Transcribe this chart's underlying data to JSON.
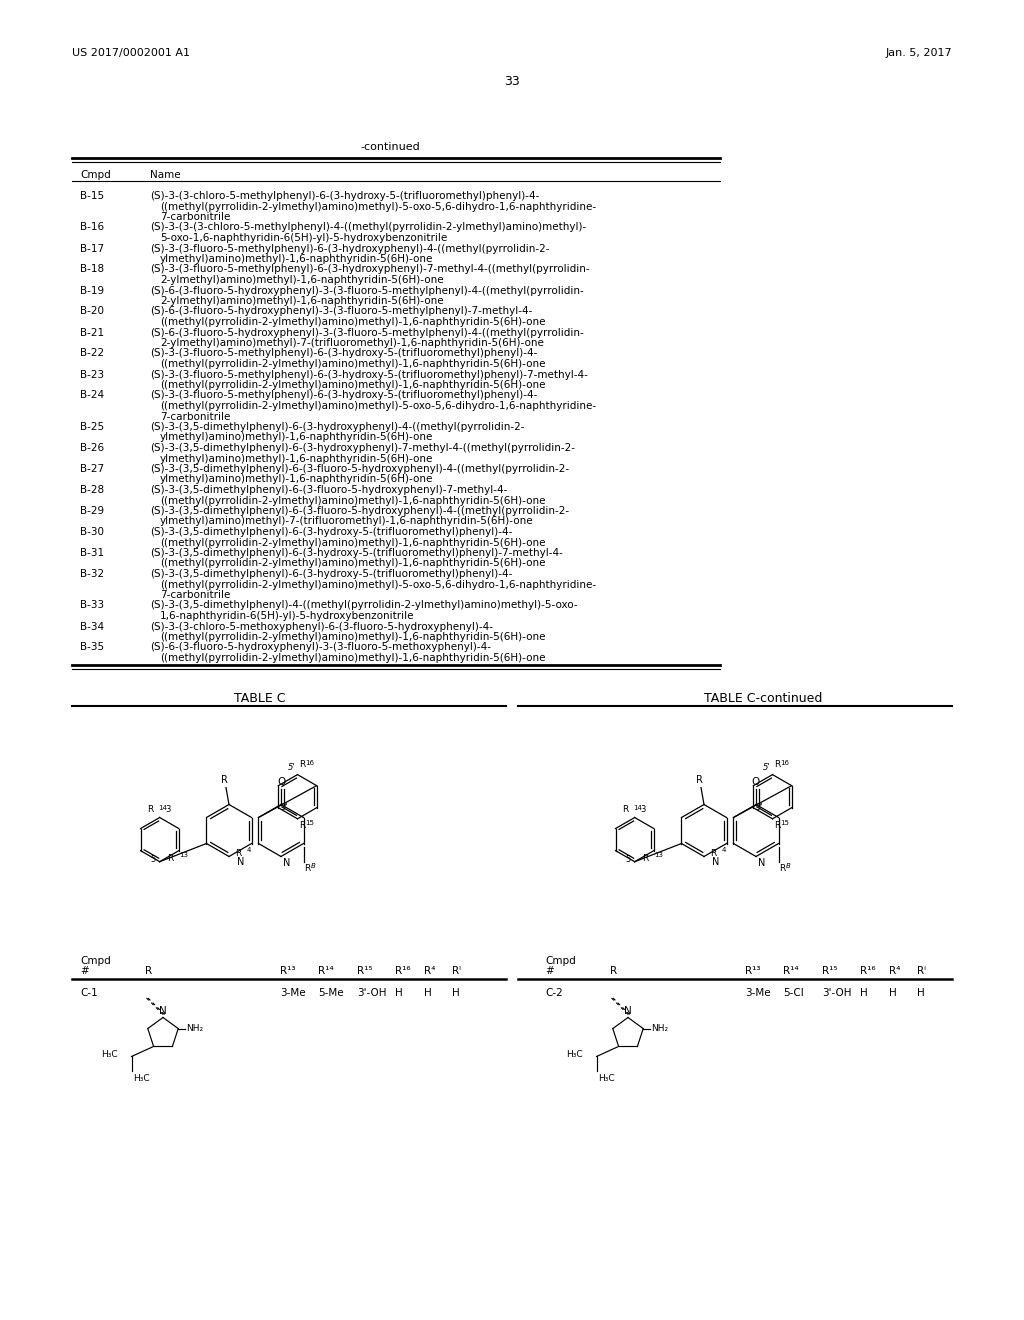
{
  "header_left": "US 2017/0002001 A1",
  "header_right": "Jan. 5, 2017",
  "page_number": "33",
  "continued_label": "-continued",
  "compounds": [
    [
      "B-15",
      "(S)-3-(3-chloro-5-methylphenyl)-6-(3-hydroxy-5-(trifluoromethyl)phenyl)-4-",
      "((methyl(pyrrolidin-2-ylmethyl)amino)methyl)-5-oxo-5,6-dihydro-1,6-naphthyridine-",
      "7-carbonitrile"
    ],
    [
      "B-16",
      "(S)-3-(3-(3-chloro-5-methylphenyl)-4-((methyl(pyrrolidin-2-ylmethyl)amino)methyl)-",
      "5-oxo-1,6-naphthyridin-6(5H)-yl)-5-hydroxybenzonitrile",
      ""
    ],
    [
      "B-17",
      "(S)-3-(3-fluoro-5-methylphenyl)-6-(3-hydroxyphenyl)-4-((methyl(pyrrolidin-2-",
      "ylmethyl)amino)methyl)-1,6-naphthyridin-5(6H)-one",
      ""
    ],
    [
      "B-18",
      "(S)-3-(3-fluoro-5-methylphenyl)-6-(3-hydroxyphenyl)-7-methyl-4-((methyl(pyrrolidin-",
      "2-ylmethyl)amino)methyl)-1,6-naphthyridin-5(6H)-one",
      ""
    ],
    [
      "B-19",
      "(S)-6-(3-fluoro-5-hydroxyphenyl)-3-(3-fluoro-5-methylphenyl)-4-((methyl(pyrrolidin-",
      "2-ylmethyl)amino)methyl)-1,6-naphthyridin-5(6H)-one",
      ""
    ],
    [
      "B-20",
      "(S)-6-(3-fluoro-5-hydroxyphenyl)-3-(3-fluoro-5-methylphenyl)-7-methyl-4-",
      "((methyl(pyrrolidin-2-ylmethyl)amino)methyl)-1,6-naphthyridin-5(6H)-one",
      ""
    ],
    [
      "B-21",
      "(S)-6-(3-fluoro-5-hydroxyphenyl)-3-(3-fluoro-5-methylphenyl)-4-((methyl(pyrrolidin-",
      "2-ylmethyl)amino)methyl)-7-(trifluoromethyl)-1,6-naphthyridin-5(6H)-one",
      ""
    ],
    [
      "B-22",
      "(S)-3-(3-fluoro-5-methylphenyl)-6-(3-hydroxy-5-(trifluoromethyl)phenyl)-4-",
      "((methyl(pyrrolidin-2-ylmethyl)amino)methyl)-1,6-naphthyridin-5(6H)-one",
      ""
    ],
    [
      "B-23",
      "(S)-3-(3-fluoro-5-methylphenyl)-6-(3-hydroxy-5-(trifluoromethyl)phenyl)-7-methyl-4-",
      "((methyl(pyrrolidin-2-ylmethyl)amino)methyl)-1,6-naphthyridin-5(6H)-one",
      ""
    ],
    [
      "B-24",
      "(S)-3-(3-fluoro-5-methylphenyl)-6-(3-hydroxy-5-(trifluoromethyl)phenyl)-4-",
      "((methyl(pyrrolidin-2-ylmethyl)amino)methyl)-5-oxo-5,6-dihydro-1,6-naphthyridine-",
      "7-carbonitrile"
    ],
    [
      "B-25",
      "(S)-3-(3,5-dimethylphenyl)-6-(3-hydroxyphenyl)-4-((methyl(pyrrolidin-2-",
      "ylmethyl)amino)methyl)-1,6-naphthyridin-5(6H)-one",
      ""
    ],
    [
      "B-26",
      "(S)-3-(3,5-dimethylphenyl)-6-(3-hydroxyphenyl)-7-methyl-4-((methyl(pyrrolidin-2-",
      "ylmethyl)amino)methyl)-1,6-naphthyridin-5(6H)-one",
      ""
    ],
    [
      "B-27",
      "(S)-3-(3,5-dimethylphenyl)-6-(3-fluoro-5-hydroxyphenyl)-4-((methyl(pyrrolidin-2-",
      "ylmethyl)amino)methyl)-1,6-naphthyridin-5(6H)-one",
      ""
    ],
    [
      "B-28",
      "(S)-3-(3,5-dimethylphenyl)-6-(3-fluoro-5-hydroxyphenyl)-7-methyl-4-",
      "((methyl(pyrrolidin-2-ylmethyl)amino)methyl)-1,6-naphthyridin-5(6H)-one",
      ""
    ],
    [
      "B-29",
      "(S)-3-(3,5-dimethylphenyl)-6-(3-fluoro-5-hydroxyphenyl)-4-((methyl(pyrrolidin-2-",
      "ylmethyl)amino)methyl)-7-(trifluoromethyl)-1,6-naphthyridin-5(6H)-one",
      ""
    ],
    [
      "B-30",
      "(S)-3-(3,5-dimethylphenyl)-6-(3-hydroxy-5-(trifluoromethyl)phenyl)-4-",
      "((methyl(pyrrolidin-2-ylmethyl)amino)methyl)-1,6-naphthyridin-5(6H)-one",
      ""
    ],
    [
      "B-31",
      "(S)-3-(3,5-dimethylphenyl)-6-(3-hydroxy-5-(trifluoromethyl)phenyl)-7-methyl-4-",
      "((methyl(pyrrolidin-2-ylmethyl)amino)methyl)-1,6-naphthyridin-5(6H)-one",
      ""
    ],
    [
      "B-32",
      "(S)-3-(3,5-dimethylphenyl)-6-(3-hydroxy-5-(trifluoromethyl)phenyl)-4-",
      "((methyl(pyrrolidin-2-ylmethyl)amino)methyl)-5-oxo-5,6-dihydro-1,6-naphthyridine-",
      "7-carbonitrile"
    ],
    [
      "B-33",
      "(S)-3-(3,5-dimethylphenyl)-4-((methyl(pyrrolidin-2-ylmethyl)amino)methyl)-5-oxo-",
      "1,6-naphthyridin-6(5H)-yl)-5-hydroxybenzonitrile",
      ""
    ],
    [
      "B-34",
      "(S)-3-(3-chloro-5-methoxyphenyl)-6-(3-fluoro-5-hydroxyphenyl)-4-",
      "((methyl(pyrrolidin-2-ylmethyl)amino)methyl)-1,6-naphthyridin-5(6H)-one",
      ""
    ],
    [
      "B-35",
      "(S)-6-(3-fluoro-5-hydroxyphenyl)-3-(3-fluoro-5-methoxyphenyl)-4-",
      "((methyl(pyrrolidin-2-ylmethyl)amino)methyl)-1,6-naphthyridin-5(6H)-one",
      ""
    ]
  ],
  "table_c_title": "TABLE C",
  "table_c_cont_title": "TABLE C-continued",
  "background_color": "#ffffff"
}
